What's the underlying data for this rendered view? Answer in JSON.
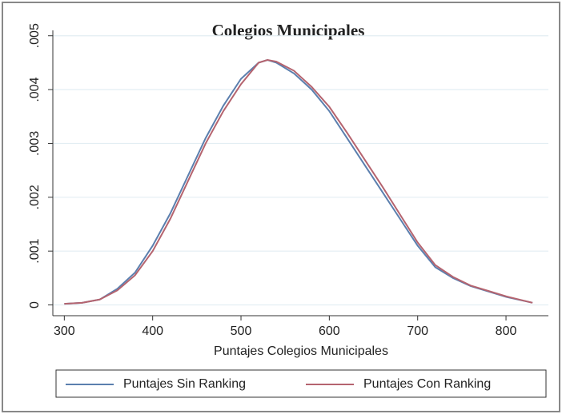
{
  "chart_data": {
    "type": "line",
    "title": "Colegios Municipales",
    "x_label": "Puntajes Colegios Municipales",
    "x": [
      300,
      320,
      340,
      360,
      380,
      400,
      420,
      440,
      460,
      480,
      500,
      520,
      530,
      540,
      560,
      580,
      600,
      620,
      640,
      660,
      680,
      700,
      720,
      740,
      760,
      780,
      800,
      830
    ],
    "series": [
      {
        "name": "Puntajes Sin Ranking",
        "color": "#5b7fae",
        "values": [
          2e-05,
          4e-05,
          0.0001,
          0.0003,
          0.0006,
          0.0011,
          0.0017,
          0.0024,
          0.0031,
          0.0037,
          0.0042,
          0.0045,
          0.00455,
          0.0045,
          0.0043,
          0.004,
          0.0036,
          0.0031,
          0.0026,
          0.0021,
          0.0016,
          0.0011,
          0.0007,
          0.0005,
          0.00035,
          0.00025,
          0.00015,
          4e-05
        ]
      },
      {
        "name": "Puntajes Con Ranking",
        "color": "#b5646f",
        "values": [
          2e-05,
          4e-05,
          0.0001,
          0.00027,
          0.00055,
          0.001,
          0.0016,
          0.0023,
          0.003,
          0.0036,
          0.0041,
          0.0045,
          0.00455,
          0.00452,
          0.00435,
          0.00405,
          0.00368,
          0.0032,
          0.0027,
          0.0022,
          0.00168,
          0.00116,
          0.00074,
          0.00052,
          0.00036,
          0.00026,
          0.00016,
          4e-05
        ]
      }
    ],
    "xlim": [
      287,
      848
    ],
    "xticks": [
      300,
      400,
      500,
      600,
      700,
      800
    ],
    "ylim": [
      -0.0002,
      0.0051
    ],
    "yticks": [
      0,
      {
        "value": 0.001,
        "label": ".001"
      },
      {
        "value": 0.002,
        "label": ".002"
      },
      {
        "value": 0.003,
        "label": ".003"
      },
      {
        "value": 0.004,
        "label": ".004"
      },
      {
        "value": 0.005,
        "label": ".005"
      }
    ],
    "grid": true,
    "legend": "bottom"
  }
}
